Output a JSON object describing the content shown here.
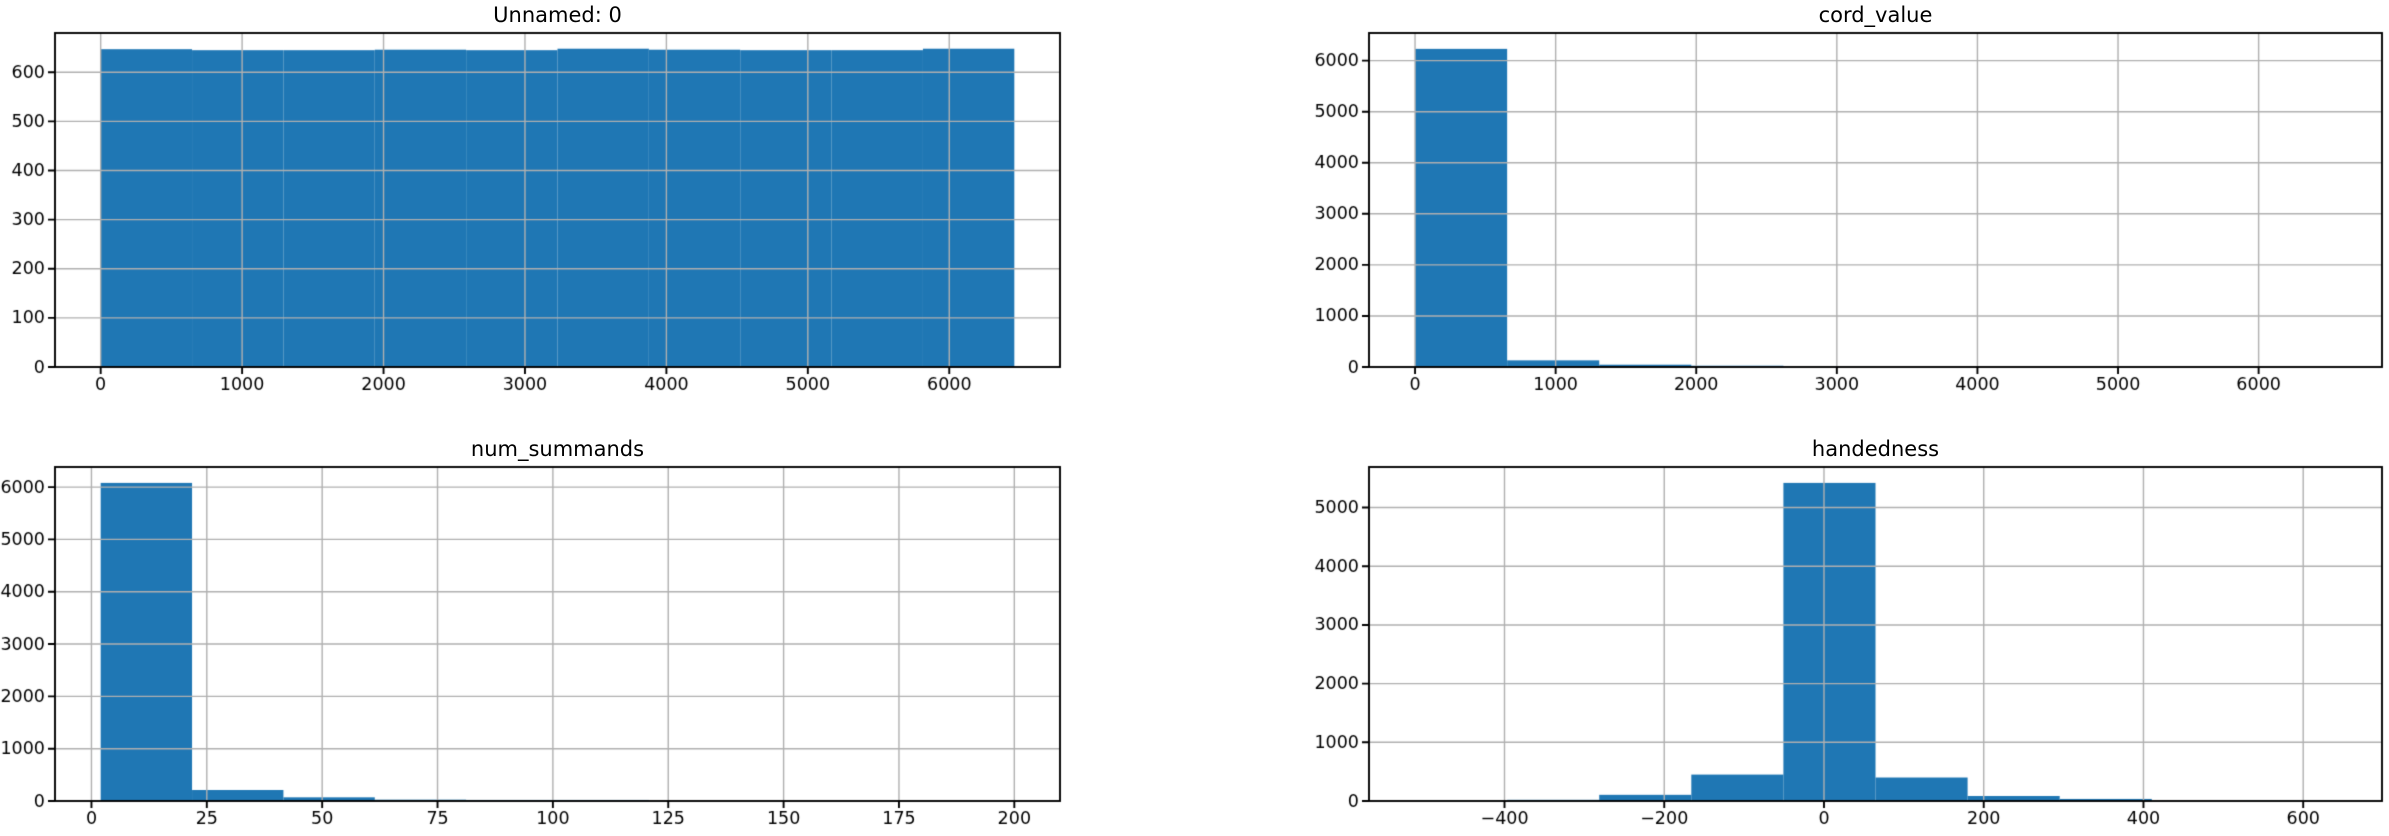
{
  "figure": {
    "background": "#ffffff",
    "bar_color": "#1f77b4",
    "grid_color": "#b0b0b0",
    "spine_color": "#000000",
    "tick_color": "#000000",
    "text_color": "#000000",
    "grid": true,
    "layout": "2x2 histogram grid"
  },
  "chart_data": [
    {
      "type": "bar",
      "subtype": "histogram",
      "title": "Unnamed: 0",
      "xlabel": "",
      "ylabel": "",
      "bin_start": 0,
      "bin_width": 646,
      "counts": [
        647,
        645,
        645,
        646,
        645,
        648,
        646,
        645,
        645,
        648
      ],
      "xticks": [
        0,
        1000,
        2000,
        3000,
        4000,
        5000,
        6000
      ],
      "yticks": [
        0,
        100,
        200,
        300,
        400,
        500,
        600
      ],
      "xlim": [
        -323,
        6783
      ],
      "ylim": [
        0,
        680
      ],
      "grid": true,
      "legend": false
    },
    {
      "type": "bar",
      "subtype": "histogram",
      "title": "cord_value",
      "xlabel": "",
      "ylabel": "",
      "bin_start": 0,
      "bin_width": 655,
      "counts": [
        6230,
        130,
        45,
        25,
        4,
        3,
        2,
        2,
        1,
        2
      ],
      "xticks": [
        0,
        1000,
        2000,
        3000,
        4000,
        5000,
        6000
      ],
      "yticks": [
        0,
        1000,
        2000,
        3000,
        4000,
        5000,
        6000
      ],
      "xlim": [
        -327.5,
        6877.5
      ],
      "ylim": [
        0,
        6541
      ],
      "grid": true,
      "legend": false
    },
    {
      "type": "bar",
      "subtype": "histogram",
      "title": "num_summands",
      "xlabel": "",
      "ylabel": "",
      "bin_start": 2,
      "bin_width": 19.8,
      "counts": [
        6080,
        210,
        70,
        25,
        20,
        20,
        3,
        2,
        1,
        2
      ],
      "xticks": [
        0,
        25,
        50,
        75,
        100,
        125,
        150,
        175,
        200
      ],
      "yticks": [
        0,
        1000,
        2000,
        3000,
        4000,
        5000,
        6000
      ],
      "xlim": [
        -7.9,
        209.9
      ],
      "ylim": [
        0,
        6384
      ],
      "grid": true,
      "legend": false
    },
    {
      "type": "bar",
      "subtype": "histogram",
      "title": "handedness",
      "xlabel": "",
      "ylabel": "",
      "bin_start": -512,
      "bin_width": 115.3,
      "counts": [
        3,
        20,
        105,
        450,
        5420,
        400,
        85,
        35,
        2,
        3
      ],
      "xticks": [
        -400,
        -200,
        0,
        200,
        400,
        600
      ],
      "yticks": [
        0,
        1000,
        2000,
        3000,
        4000,
        5000
      ],
      "xlim": [
        -569.65,
        698.65
      ],
      "ylim": [
        0,
        5691
      ],
      "grid": true,
      "legend": false
    }
  ]
}
